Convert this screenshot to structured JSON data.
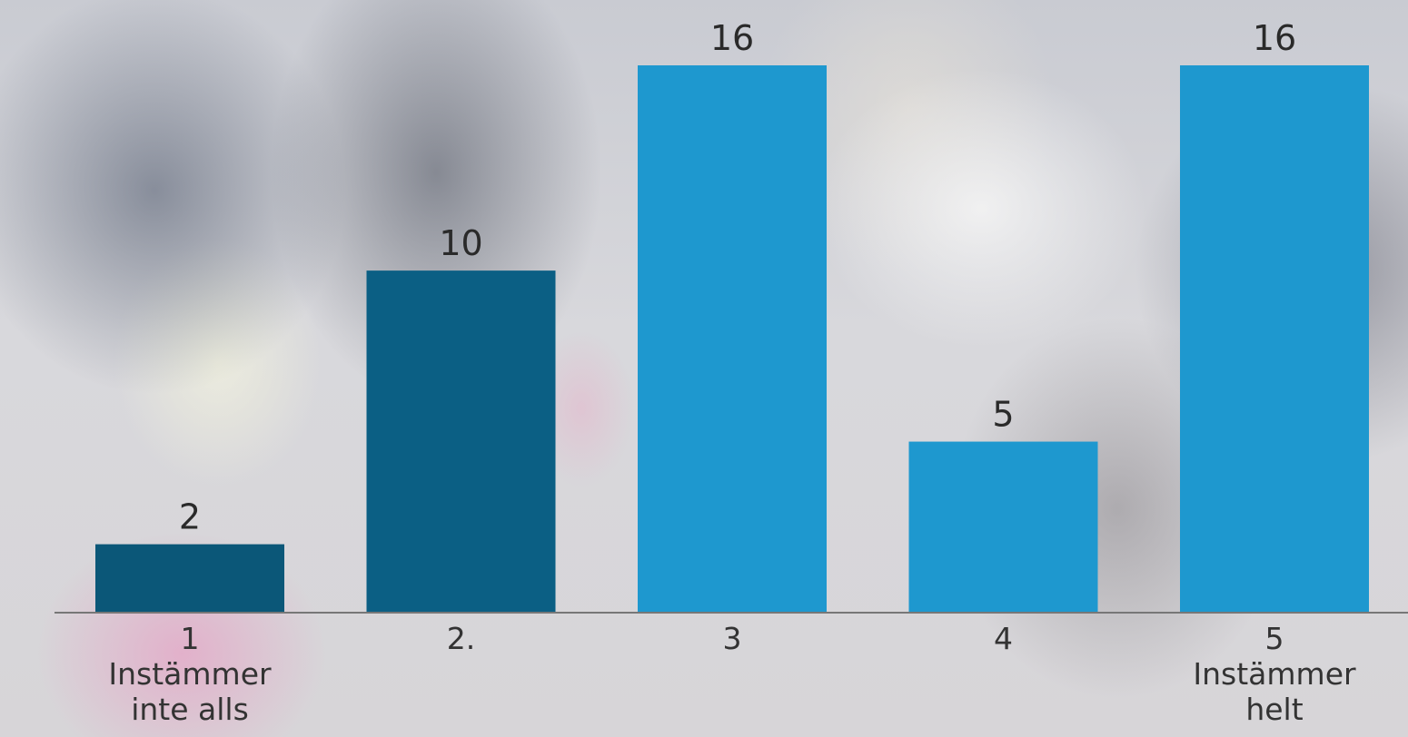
{
  "chart_data": {
    "type": "bar",
    "categories": [
      "1\nInstämmer\ninte alls",
      "2.",
      "3",
      "4",
      "5\nInstämmer\nhelt"
    ],
    "values": [
      2,
      10,
      16,
      5,
      16
    ],
    "title": "",
    "xlabel": "",
    "ylabel": "",
    "ylim": [
      0,
      16
    ],
    "grid": false,
    "legend": "none",
    "bar_colors": [
      "#0b5778",
      "#0b5f84",
      "#1e98cf",
      "#1e98cf",
      "#1e98cf"
    ],
    "axis_color": "#777777"
  }
}
